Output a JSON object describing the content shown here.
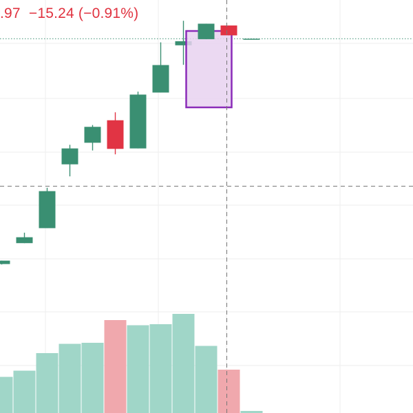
{
  "header": {
    "legend_partial": ".97  −15.24 (−0.91%)"
  },
  "colors": {
    "up": "#3a8f72",
    "down": "#e13444",
    "vol_up": "#a0d6c8",
    "vol_down": "#f0a8ad",
    "grid": "#eeeeee",
    "crosshair": "#777777",
    "price_line": "#3a8f72",
    "highlight_fill": "#e8d2f0",
    "highlight_stroke": "#8a2bb8",
    "legend_text": "#e0323f"
  },
  "chart_data": {
    "type": "candlestick",
    "grid": true,
    "crosshair": true,
    "price_line": true,
    "highlighted_bar_index": 9,
    "candles": [
      {
        "open": 0.8,
        "close": 0.95,
        "high": 0.95,
        "low": 0.78
      },
      {
        "open": 1.72,
        "close": 1.98,
        "high": 2.18,
        "low": 1.72
      },
      {
        "open": 2.38,
        "close": 4.01,
        "high": 4.16,
        "low": 2.38
      },
      {
        "open": 5.19,
        "close": 5.89,
        "high": 6.05,
        "low": 4.66
      },
      {
        "open": 6.14,
        "close": 6.84,
        "high": 6.92,
        "low": 5.8
      },
      {
        "open": 7.13,
        "close": 5.87,
        "high": 7.48,
        "low": 5.63
      },
      {
        "open": 5.89,
        "close": 8.26,
        "high": 8.39,
        "low": 5.89
      },
      {
        "open": 8.35,
        "close": 9.56,
        "high": 10.56,
        "low": 8.35
      },
      {
        "open": 10.43,
        "close": 10.61,
        "high": 11.51,
        "low": 9.57
      },
      {
        "open": 10.7,
        "close": 11.38,
        "high": 11.38,
        "low": 10.7
      },
      {
        "open": 11.3,
        "close": 10.87,
        "high": 11.3,
        "low": 10.87
      },
      {
        "open": 10.7,
        "close": 10.72,
        "high": 10.72,
        "low": 10.7
      }
    ],
    "volume": [
      {
        "value": 0.35,
        "up": true
      },
      {
        "value": 0.41,
        "up": true
      },
      {
        "value": 0.58,
        "up": true
      },
      {
        "value": 0.67,
        "up": true
      },
      {
        "value": 0.68,
        "up": true
      },
      {
        "value": 0.9,
        "up": false
      },
      {
        "value": 0.85,
        "up": true
      },
      {
        "value": 0.86,
        "up": true
      },
      {
        "value": 0.96,
        "up": true
      },
      {
        "value": 0.65,
        "up": true
      },
      {
        "value": 0.42,
        "up": false
      },
      {
        "value": 0.02,
        "up": true
      }
    ]
  }
}
